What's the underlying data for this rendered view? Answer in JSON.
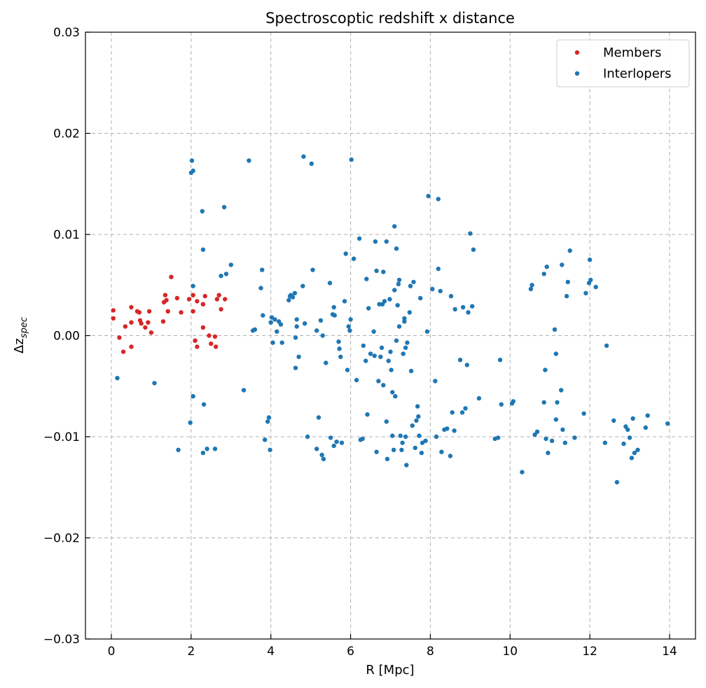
{
  "chart_data": {
    "type": "scatter",
    "title": "Spectroscoptic redshift x distance",
    "xlabel": "R [Mpc]",
    "ylabel_base": "Δz",
    "ylabel_sub": "spec",
    "xlim": [
      -0.65,
      14.65
    ],
    "ylim": [
      -0.03,
      0.03
    ],
    "xticks": [
      0,
      2,
      4,
      6,
      8,
      10,
      12,
      14
    ],
    "yticks": [
      -0.03,
      -0.02,
      -0.01,
      0.0,
      0.01,
      0.02,
      0.03
    ],
    "ytick_labels": [
      "−0.03",
      "−0.02",
      "−0.01",
      "0.00",
      "0.01",
      "0.02",
      "0.03"
    ],
    "xtick_labels": [
      "0",
      "2",
      "4",
      "6",
      "8",
      "10",
      "12",
      "14"
    ],
    "grid": true,
    "legend_position": "top-right",
    "series": [
      {
        "name": "Members",
        "color": "#d62728",
        "points": [
          [
            0.05,
            0.0025
          ],
          [
            0.05,
            0.0017
          ],
          [
            0.2,
            -0.0002
          ],
          [
            0.3,
            -0.0016
          ],
          [
            0.35,
            0.0009
          ],
          [
            0.5,
            0.0028
          ],
          [
            0.5,
            0.0013
          ],
          [
            0.5,
            -0.0011
          ],
          [
            0.65,
            0.0024
          ],
          [
            0.7,
            0.0023
          ],
          [
            0.72,
            0.0015
          ],
          [
            0.75,
            0.0012
          ],
          [
            0.85,
            0.0008
          ],
          [
            0.92,
            0.0013
          ],
          [
            0.95,
            0.0024
          ],
          [
            1.0,
            0.0003
          ],
          [
            1.3,
            0.0014
          ],
          [
            1.32,
            0.0033
          ],
          [
            1.35,
            0.004
          ],
          [
            1.38,
            0.0035
          ],
          [
            1.42,
            0.0024
          ],
          [
            1.5,
            0.0058
          ],
          [
            1.65,
            0.0037
          ],
          [
            1.75,
            0.0023
          ],
          [
            1.95,
            0.0036
          ],
          [
            2.05,
            0.004
          ],
          [
            2.05,
            0.0024
          ],
          [
            2.1,
            -0.0005
          ],
          [
            2.15,
            -0.0011
          ],
          [
            2.15,
            0.0034
          ],
          [
            2.3,
            0.0031
          ],
          [
            2.3,
            0.0008
          ],
          [
            2.35,
            0.0039
          ],
          [
            2.45,
            0.0
          ],
          [
            2.5,
            -0.0008
          ],
          [
            2.6,
            -0.0001
          ],
          [
            2.62,
            -0.0011
          ],
          [
            2.65,
            0.0036
          ],
          [
            2.7,
            0.004
          ],
          [
            2.75,
            0.0026
          ],
          [
            2.85,
            0.0036
          ]
        ]
      },
      {
        "name": "Interlopers",
        "color": "#1f77b4",
        "points": [
          [
            0.15,
            -0.0042
          ],
          [
            1.08,
            -0.0047
          ],
          [
            1.68,
            -0.0113
          ],
          [
            1.98,
            -0.0086
          ],
          [
            2.0,
            0.0161
          ],
          [
            2.02,
            0.0173
          ],
          [
            2.05,
            0.0163
          ],
          [
            2.05,
            0.0049
          ],
          [
            2.05,
            -0.006
          ],
          [
            2.28,
            0.0123
          ],
          [
            2.3,
            0.0085
          ],
          [
            2.3,
            -0.0116
          ],
          [
            2.32,
            -0.0068
          ],
          [
            2.4,
            -0.0112
          ],
          [
            2.6,
            -0.0112
          ],
          [
            2.75,
            0.0059
          ],
          [
            2.83,
            0.0127
          ],
          [
            2.88,
            0.0061
          ],
          [
            3.0,
            0.007
          ],
          [
            3.32,
            -0.0054
          ],
          [
            3.45,
            0.0173
          ],
          [
            3.55,
            0.0005
          ],
          [
            3.6,
            0.0006
          ],
          [
            3.75,
            0.0047
          ],
          [
            3.78,
            0.0065
          ],
          [
            3.8,
            0.002
          ],
          [
            3.85,
            -0.0103
          ],
          [
            3.92,
            -0.0085
          ],
          [
            3.95,
            -0.0081
          ],
          [
            3.98,
            -0.0113
          ],
          [
            4.0,
            0.0013
          ],
          [
            4.02,
            0.0018
          ],
          [
            4.05,
            -0.0007
          ],
          [
            4.1,
            0.0016
          ],
          [
            4.15,
            0.0004
          ],
          [
            4.2,
            0.0014
          ],
          [
            4.25,
            0.0011
          ],
          [
            4.28,
            -0.0007
          ],
          [
            4.45,
            0.0035
          ],
          [
            4.48,
            0.0039
          ],
          [
            4.5,
            0.004
          ],
          [
            4.55,
            0.0038
          ],
          [
            4.6,
            0.0042
          ],
          [
            4.62,
            -0.0002
          ],
          [
            4.62,
            -0.0032
          ],
          [
            4.65,
            0.0016
          ],
          [
            4.65,
            0.0009
          ],
          [
            4.7,
            -0.0021
          ],
          [
            4.8,
            0.0049
          ],
          [
            4.82,
            0.0177
          ],
          [
            4.85,
            0.0012
          ],
          [
            4.92,
            -0.01
          ],
          [
            5.02,
            0.017
          ],
          [
            5.05,
            0.0065
          ],
          [
            5.15,
            -0.0112
          ],
          [
            5.15,
            0.0005
          ],
          [
            5.2,
            -0.0081
          ],
          [
            5.25,
            0.0015
          ],
          [
            5.28,
            -0.0118
          ],
          [
            5.3,
            0.0
          ],
          [
            5.32,
            -0.0122
          ],
          [
            5.38,
            -0.0027
          ],
          [
            5.48,
            0.0052
          ],
          [
            5.5,
            -0.0101
          ],
          [
            5.55,
            0.0021
          ],
          [
            5.58,
            -0.0109
          ],
          [
            5.58,
            0.0028
          ],
          [
            5.6,
            0.002
          ],
          [
            5.65,
            -0.0105
          ],
          [
            5.7,
            -0.0006
          ],
          [
            5.72,
            -0.0013
          ],
          [
            5.75,
            -0.0021
          ],
          [
            5.78,
            -0.0106
          ],
          [
            5.85,
            0.0034
          ],
          [
            5.88,
            0.0081
          ],
          [
            5.92,
            -0.0034
          ],
          [
            5.95,
            0.0009
          ],
          [
            5.98,
            0.0005
          ],
          [
            6.0,
            0.0016
          ],
          [
            6.02,
            0.0174
          ],
          [
            6.08,
            0.0076
          ],
          [
            6.15,
            -0.0044
          ],
          [
            6.22,
            0.0096
          ],
          [
            6.25,
            -0.0103
          ],
          [
            6.3,
            -0.0102
          ],
          [
            6.32,
            -0.001
          ],
          [
            6.38,
            -0.0025
          ],
          [
            6.4,
            0.0056
          ],
          [
            6.42,
            -0.0078
          ],
          [
            6.45,
            0.0027
          ],
          [
            6.5,
            -0.0018
          ],
          [
            6.58,
            0.0004
          ],
          [
            6.6,
            -0.002
          ],
          [
            6.62,
            0.0093
          ],
          [
            6.65,
            -0.0115
          ],
          [
            6.65,
            0.0064
          ],
          [
            6.7,
            -0.0045
          ],
          [
            6.72,
            0.0031
          ],
          [
            6.75,
            -0.0021
          ],
          [
            6.78,
            -0.0012
          ],
          [
            6.8,
            0.0031
          ],
          [
            6.82,
            0.0063
          ],
          [
            6.82,
            -0.0049
          ],
          [
            6.85,
            0.0034
          ],
          [
            6.9,
            0.0093
          ],
          [
            6.9,
            -0.0085
          ],
          [
            6.92,
            -0.0122
          ],
          [
            6.95,
            -0.0025
          ],
          [
            6.98,
            0.0036
          ],
          [
            7.0,
            -0.0016
          ],
          [
            7.02,
            -0.0034
          ],
          [
            7.05,
            -0.0099
          ],
          [
            7.05,
            -0.0056
          ],
          [
            7.08,
            -0.0113
          ],
          [
            7.1,
            0.0045
          ],
          [
            7.1,
            0.0108
          ],
          [
            7.12,
            -0.006
          ],
          [
            7.15,
            -0.0005
          ],
          [
            7.15,
            0.0086
          ],
          [
            7.18,
            0.003
          ],
          [
            7.2,
            0.0051
          ],
          [
            7.22,
            0.0009
          ],
          [
            7.22,
            0.0055
          ],
          [
            7.25,
            -0.0099
          ],
          [
            7.28,
            -0.0113
          ],
          [
            7.3,
            -0.0106
          ],
          [
            7.32,
            -0.0018
          ],
          [
            7.35,
            0.0014
          ],
          [
            7.35,
            0.0017
          ],
          [
            7.38,
            -0.0012
          ],
          [
            7.38,
            -0.01
          ],
          [
            7.4,
            -0.0128
          ],
          [
            7.42,
            -0.0007
          ],
          [
            7.48,
            0.0023
          ],
          [
            7.5,
            0.0049
          ],
          [
            7.52,
            -0.0035
          ],
          [
            7.55,
            -0.0089
          ],
          [
            7.58,
            0.0053
          ],
          [
            7.62,
            -0.0111
          ],
          [
            7.65,
            -0.0084
          ],
          [
            7.68,
            -0.007
          ],
          [
            7.7,
            -0.008
          ],
          [
            7.72,
            -0.0099
          ],
          [
            7.75,
            0.0037
          ],
          [
            7.78,
            -0.0116
          ],
          [
            7.8,
            -0.0106
          ],
          [
            7.88,
            -0.0104
          ],
          [
            7.92,
            0.0004
          ],
          [
            7.95,
            0.0138
          ],
          [
            8.05,
            0.0046
          ],
          [
            8.12,
            -0.0045
          ],
          [
            8.15,
            -0.01
          ],
          [
            8.2,
            0.0135
          ],
          [
            8.2,
            0.0066
          ],
          [
            8.25,
            0.0044
          ],
          [
            8.28,
            -0.0115
          ],
          [
            8.35,
            -0.0093
          ],
          [
            8.42,
            -0.0092
          ],
          [
            8.5,
            -0.0119
          ],
          [
            8.52,
            0.0039
          ],
          [
            8.55,
            -0.0076
          ],
          [
            8.6,
            -0.0094
          ],
          [
            8.62,
            0.0026
          ],
          [
            8.75,
            -0.0024
          ],
          [
            8.8,
            -0.0076
          ],
          [
            8.82,
            0.0028
          ],
          [
            8.88,
            -0.0072
          ],
          [
            8.92,
            -0.0029
          ],
          [
            8.95,
            0.0023
          ],
          [
            9.0,
            0.0101
          ],
          [
            9.05,
            0.0029
          ],
          [
            9.08,
            0.0085
          ],
          [
            9.22,
            -0.0062
          ],
          [
            9.62,
            -0.0102
          ],
          [
            9.7,
            -0.0101
          ],
          [
            9.75,
            -0.0024
          ],
          [
            9.78,
            -0.0068
          ],
          [
            10.05,
            -0.0067
          ],
          [
            10.08,
            -0.0065
          ],
          [
            10.3,
            -0.0135
          ],
          [
            10.52,
            0.0046
          ],
          [
            10.55,
            0.005
          ],
          [
            10.62,
            -0.0098
          ],
          [
            10.68,
            -0.0095
          ],
          [
            10.85,
            -0.0066
          ],
          [
            10.85,
            0.0061
          ],
          [
            10.88,
            -0.0034
          ],
          [
            10.9,
            -0.0102
          ],
          [
            10.92,
            0.0068
          ],
          [
            10.95,
            -0.0116
          ],
          [
            11.05,
            -0.0104
          ],
          [
            11.12,
            0.0006
          ],
          [
            11.15,
            -0.0083
          ],
          [
            11.15,
            -0.0018
          ],
          [
            11.18,
            -0.0066
          ],
          [
            11.28,
            -0.0054
          ],
          [
            11.3,
            0.007
          ],
          [
            11.32,
            -0.0093
          ],
          [
            11.38,
            -0.0106
          ],
          [
            11.42,
            0.0039
          ],
          [
            11.45,
            0.0053
          ],
          [
            11.5,
            0.0084
          ],
          [
            11.62,
            -0.0101
          ],
          [
            11.85,
            -0.0077
          ],
          [
            11.9,
            0.0042
          ],
          [
            11.98,
            0.0052
          ],
          [
            12.0,
            0.0075
          ],
          [
            12.02,
            0.0055
          ],
          [
            12.15,
            0.0048
          ],
          [
            12.38,
            -0.0106
          ],
          [
            12.42,
            -0.001
          ],
          [
            12.6,
            -0.0084
          ],
          [
            12.68,
            -0.0145
          ],
          [
            12.85,
            -0.0107
          ],
          [
            12.9,
            -0.009
          ],
          [
            12.95,
            -0.0093
          ],
          [
            13.0,
            -0.0101
          ],
          [
            13.05,
            -0.0121
          ],
          [
            13.08,
            -0.0082
          ],
          [
            13.12,
            -0.0116
          ],
          [
            13.2,
            -0.0113
          ],
          [
            13.4,
            -0.0091
          ],
          [
            13.45,
            -0.0079
          ],
          [
            13.95,
            -0.0087
          ]
        ]
      }
    ]
  }
}
